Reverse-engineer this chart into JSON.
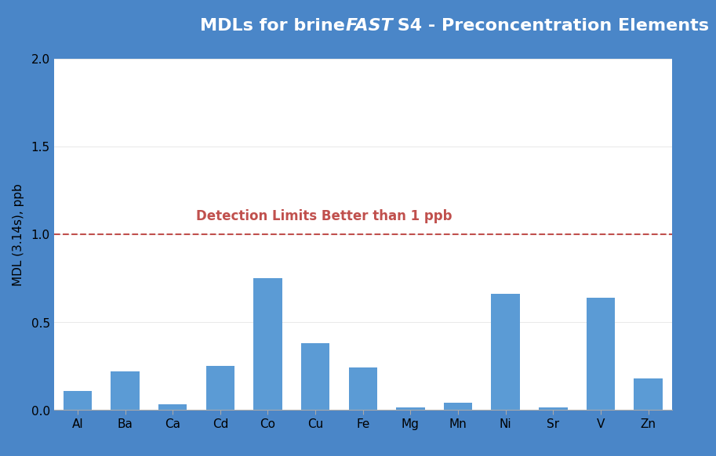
{
  "categories": [
    "Al",
    "Ba",
    "Ca",
    "Cd",
    "Co",
    "Cu",
    "Fe",
    "Mg",
    "Mn",
    "Ni",
    "Sr",
    "V",
    "Zn"
  ],
  "values": [
    0.11,
    0.22,
    0.03,
    0.25,
    0.75,
    0.38,
    0.24,
    0.013,
    0.04,
    0.66,
    0.013,
    0.64,
    0.18
  ],
  "bar_color": "#5b9bd5",
  "title_part1": "MDLs for brine",
  "title_part2": "FAST",
  "title_part3": " S4 - Preconcentration Elements",
  "title_bg_color": "#4caf50",
  "title_text_color": "#ffffff",
  "ylabel": "MDL (3.14s), ppb",
  "ylim": [
    0,
    2.0
  ],
  "yticks": [
    0.0,
    0.5,
    1.0,
    1.5,
    2.0
  ],
  "hline_y": 1.0,
  "hline_color": "#c0504d",
  "hline_label": "Detection Limits Better than 1 ppb",
  "hline_label_color": "#c0504d",
  "outer_border_color": "#4a86c8",
  "inner_bg_color": "#ffffff",
  "figure_bg_color": "#4a86c8",
  "bar_edge_color": "none",
  "title_fontsize": 16,
  "axis_fontsize": 11,
  "ylabel_fontsize": 11
}
